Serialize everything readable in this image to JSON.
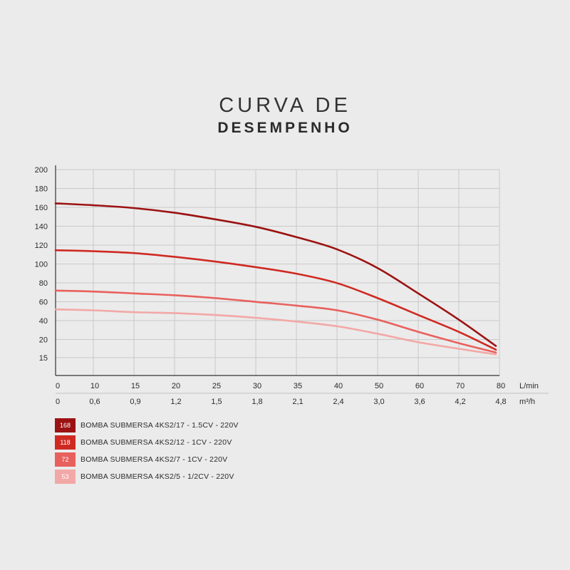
{
  "title": {
    "line1": "CURVA DE",
    "line2": "DESEMPENHO"
  },
  "chart_data": {
    "type": "line",
    "ylim": [
      0,
      200
    ],
    "y_ticks": [
      "200",
      "180",
      "160",
      "140",
      "120",
      "100",
      "80",
      "60",
      "40",
      "20",
      "15"
    ],
    "y_tick_values": [
      200,
      180,
      160,
      140,
      120,
      100,
      80,
      60,
      40,
      20,
      15
    ],
    "xlim": [
      0,
      80
    ],
    "x_ticks_lmin": [
      "0",
      "10",
      "15",
      "20",
      "25",
      "30",
      "35",
      "40",
      "50",
      "60",
      "70",
      "80"
    ],
    "x_ticks_m3h": [
      "0",
      "0,6",
      "0,9",
      "1,2",
      "1,5",
      "1,8",
      "2,1",
      "2,4",
      "3,0",
      "3,6",
      "4,2",
      "4,8"
    ],
    "x_unit_lmin": "L/min",
    "x_unit_m3h": "m³/h",
    "grid": true,
    "legend_position": "bottom-left",
    "series": [
      {
        "name": "BOMBA SUBMERSA 4KS2/17 - 1.5CV - 220V",
        "badge": "168",
        "color": "#9c1212",
        "x": [
          0,
          10,
          15,
          20,
          25,
          30,
          35,
          40,
          50,
          60,
          70,
          80
        ],
        "values": [
          164,
          162,
          159,
          154,
          147,
          139,
          128,
          115,
          95,
          68,
          40,
          12
        ]
      },
      {
        "name": "BOMBA SUBMERSA 4KS2/12 - 1CV - 220V",
        "badge": "118",
        "color": "#cf2a22",
        "x": [
          0,
          10,
          15,
          20,
          25,
          30,
          35,
          40,
          50,
          60,
          70,
          80
        ],
        "values": [
          114,
          113,
          111,
          107,
          102,
          96,
          89,
          79,
          63,
          45,
          27,
          8
        ]
      },
      {
        "name": "BOMBA SUBMERSA 4KS2/7 - 1CV - 220V",
        "badge": "72",
        "color": "#e8605d",
        "x": [
          0,
          10,
          15,
          20,
          25,
          30,
          35,
          40,
          50,
          60,
          70,
          80
        ],
        "values": [
          71,
          70,
          68,
          66,
          63,
          59,
          55,
          50,
          40,
          27,
          15,
          5
        ]
      },
      {
        "name": "BOMBA SUBMERSA 4KS2/5 - 1/2CV - 220V",
        "badge": "53",
        "color": "#f2a8a6",
        "x": [
          0,
          10,
          15,
          20,
          25,
          30,
          35,
          40,
          50,
          60,
          70,
          80
        ],
        "values": [
          51,
          50,
          48,
          47,
          45,
          42,
          38,
          33,
          25,
          16,
          9,
          3
        ]
      }
    ]
  }
}
